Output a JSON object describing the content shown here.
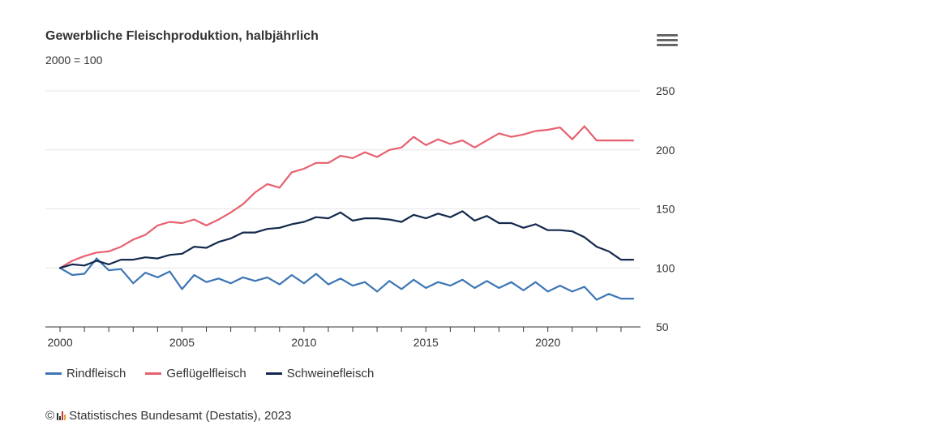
{
  "title": "Gewerbliche Fleischproduktion, halbjährlich",
  "subtitle": "2000 = 100",
  "menu_icon": "hamburger-menu-icon",
  "credits": {
    "symbol": "©",
    "text": "Statistisches Bundesamt (Destatis), 2023"
  },
  "chart_data": {
    "type": "line",
    "title": "Gewerbliche Fleischproduktion, halbjährlich",
    "subtitle": "2000 = 100",
    "xlabel": "",
    "ylabel": "",
    "xlim": [
      1999.4,
      2023.8
    ],
    "ylim": [
      50,
      250
    ],
    "x_ticks": [
      2000,
      2005,
      2010,
      2015,
      2020
    ],
    "y_ticks": [
      50,
      100,
      150,
      200,
      250
    ],
    "legend_position": "bottom-left",
    "x": [
      2000,
      2000.5,
      2001,
      2001.5,
      2002,
      2002.5,
      2003,
      2003.5,
      2004,
      2004.5,
      2005,
      2005.5,
      2006,
      2006.5,
      2007,
      2007.5,
      2008,
      2008.5,
      2009,
      2009.5,
      2010,
      2010.5,
      2011,
      2011.5,
      2012,
      2012.5,
      2013,
      2013.5,
      2014,
      2014.5,
      2015,
      2015.5,
      2016,
      2016.5,
      2017,
      2017.5,
      2018,
      2018.5,
      2019,
      2019.5,
      2020,
      2020.5,
      2021,
      2021.5,
      2022,
      2022.5,
      2023,
      2023.5
    ],
    "series": [
      {
        "name": "Rindfleisch",
        "color": "#3d76b5",
        "values": [
          100,
          94,
          95,
          108,
          98,
          99,
          87,
          96,
          92,
          97,
          82,
          94,
          88,
          91,
          87,
          92,
          89,
          92,
          86,
          94,
          87,
          95,
          86,
          91,
          85,
          88,
          80,
          89,
          82,
          90,
          83,
          88,
          85,
          90,
          83,
          89,
          83,
          88,
          81,
          88,
          80,
          85,
          80,
          84,
          73,
          78,
          74,
          74
        ]
      },
      {
        "name": "Geflügelfleisch",
        "color": "#e8606f",
        "values": [
          100,
          106,
          110,
          113,
          114,
          118,
          124,
          128,
          136,
          139,
          138,
          141,
          136,
          141,
          147,
          154,
          164,
          171,
          168,
          181,
          184,
          189,
          189,
          195,
          193,
          198,
          194,
          200,
          202,
          211,
          204,
          209,
          205,
          208,
          202,
          208,
          214,
          211,
          213,
          216,
          217,
          219,
          209,
          220,
          208,
          208,
          208,
          208
        ]
      },
      {
        "name": "Schweinefleisch",
        "color": "#13294d",
        "values": [
          100,
          103,
          102,
          106,
          103,
          107,
          107,
          109,
          108,
          111,
          112,
          118,
          117,
          122,
          125,
          130,
          130,
          133,
          134,
          137,
          139,
          143,
          142,
          147,
          140,
          142,
          142,
          141,
          139,
          145,
          142,
          146,
          143,
          148,
          140,
          144,
          138,
          138,
          134,
          137,
          132,
          132,
          131,
          126,
          118,
          114,
          107,
          107
        ]
      }
    ]
  }
}
